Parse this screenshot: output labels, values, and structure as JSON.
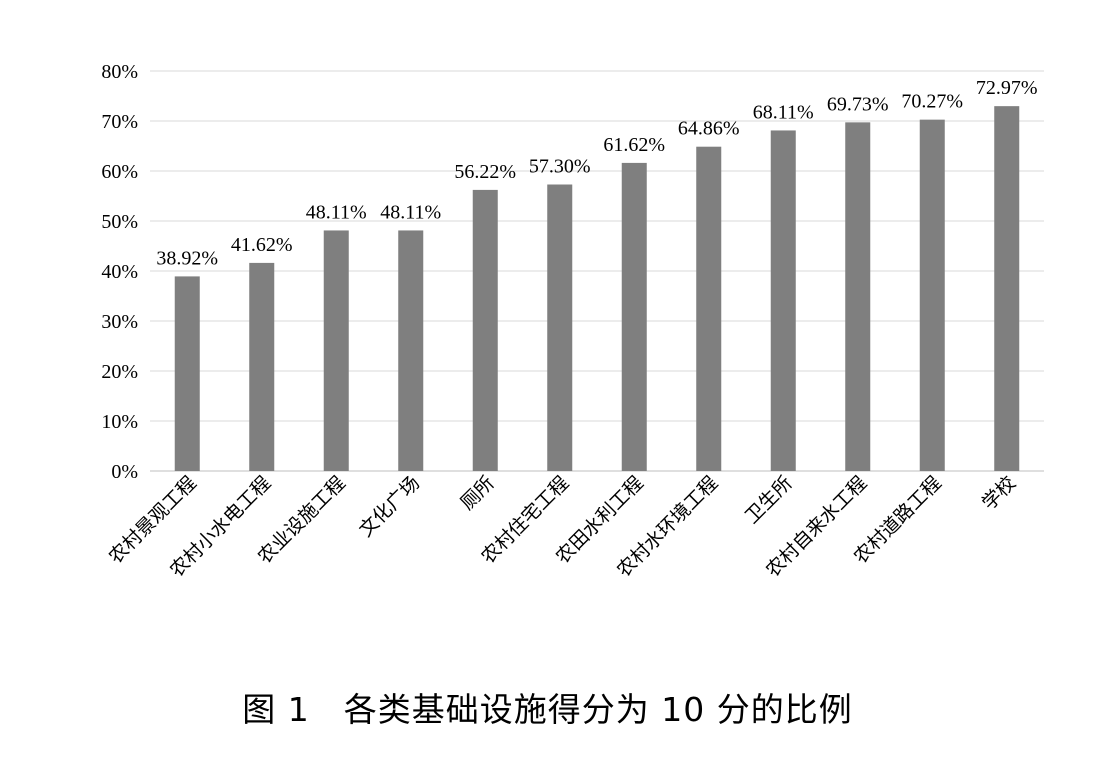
{
  "caption": "图 1　各类基础设施得分为 10 分的比例",
  "chart_data": {
    "type": "bar",
    "categories": [
      "农村景观工程",
      "农村小水电工程",
      "农业设施工程",
      "文化广场",
      "厕所",
      "农村住宅工程",
      "农田水利工程",
      "农村水环境工程",
      "卫生所",
      "农村自来水工程",
      "农村道路工程",
      "学校"
    ],
    "values": [
      38.92,
      41.62,
      48.11,
      48.11,
      56.22,
      57.3,
      61.62,
      64.86,
      68.11,
      69.73,
      70.27,
      72.97
    ],
    "value_labels": [
      "38.92%",
      "41.62%",
      "48.11%",
      "48.11%",
      "56.22%",
      "57.30%",
      "61.62%",
      "64.86%",
      "68.11%",
      "69.73%",
      "70.27%",
      "72.97%"
    ],
    "y_ticks": [
      "0%",
      "10%",
      "20%",
      "30%",
      "40%",
      "50%",
      "60%",
      "70%",
      "80%"
    ],
    "ylim": [
      0,
      80
    ],
    "title": "",
    "xlabel": "",
    "ylabel": "",
    "grid": true,
    "legend": "none",
    "colors": {
      "bar": "#7f7f7f",
      "grid": "#d9d9d9",
      "axis": "#bfbfbf"
    }
  }
}
